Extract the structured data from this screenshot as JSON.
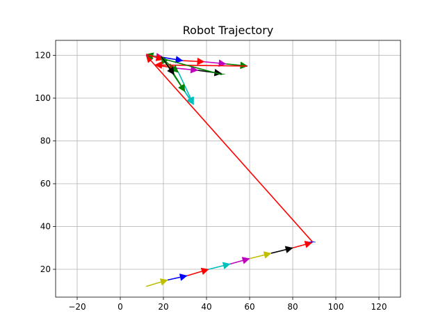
{
  "chart_data": {
    "type": "line",
    "title": "Robot Trajectory",
    "xlabel": "",
    "ylabel": "",
    "xlim": [
      -30,
      130
    ],
    "ylim": [
      7,
      127
    ],
    "x_ticks": [
      -20,
      0,
      20,
      40,
      60,
      80,
      100,
      120
    ],
    "y_ticks": [
      20,
      40,
      60,
      80,
      100,
      120
    ],
    "grid": true,
    "marker": "triangle arrowheads",
    "points": [
      {
        "x": 12,
        "y": 12
      },
      {
        "x": 22,
        "y": 15
      },
      {
        "x": 31,
        "y": 17
      },
      {
        "x": 41,
        "y": 20
      },
      {
        "x": 51,
        "y": 22.5
      },
      {
        "x": 60,
        "y": 25
      },
      {
        "x": 70,
        "y": 27.5
      },
      {
        "x": 80,
        "y": 30
      },
      {
        "x": 89,
        "y": 32.5
      },
      {
        "x": 89,
        "y": 33
      },
      {
        "x": 12,
        "y": 120
      },
      {
        "x": 20,
        "y": 119
      },
      {
        "x": 29,
        "y": 117.5
      },
      {
        "x": 39,
        "y": 117
      },
      {
        "x": 49,
        "y": 116
      },
      {
        "x": 59,
        "y": 115
      },
      {
        "x": 59,
        "y": 115
      },
      {
        "x": 16,
        "y": 115.5
      },
      {
        "x": 26,
        "y": 114
      },
      {
        "x": 36,
        "y": 113
      },
      {
        "x": 47,
        "y": 111.5
      },
      {
        "x": 47,
        "y": 111
      },
      {
        "x": 12,
        "y": 120.5
      },
      {
        "x": 20,
        "y": 118
      },
      {
        "x": 27,
        "y": 112
      },
      {
        "x": 34,
        "y": 97
      },
      {
        "x": 34,
        "y": 97
      },
      {
        "x": 19,
        "y": 119.5
      },
      {
        "x": 25,
        "y": 111
      },
      {
        "x": 30,
        "y": 103
      },
      {
        "x": 34,
        "y": 97
      }
    ],
    "colors": {
      "magenta": "#bf00bf",
      "yellow": "#bfbf00",
      "blue": "#0000ff",
      "red": "#ff0000",
      "cyan": "#00bfbf",
      "black": "#000000",
      "green": "#008000"
    },
    "segment_colors": [
      "yellow",
      "blue",
      "red",
      "cyan",
      "magenta",
      "yellow",
      "black",
      "red",
      "blue",
      "red",
      "magenta",
      "blue",
      "red",
      "magenta",
      "green",
      "green",
      "red",
      "red",
      "magenta",
      "black",
      "green",
      "green",
      "red",
      "green",
      "cyan",
      "black",
      "green",
      "black",
      "green",
      "cyan"
    ]
  }
}
